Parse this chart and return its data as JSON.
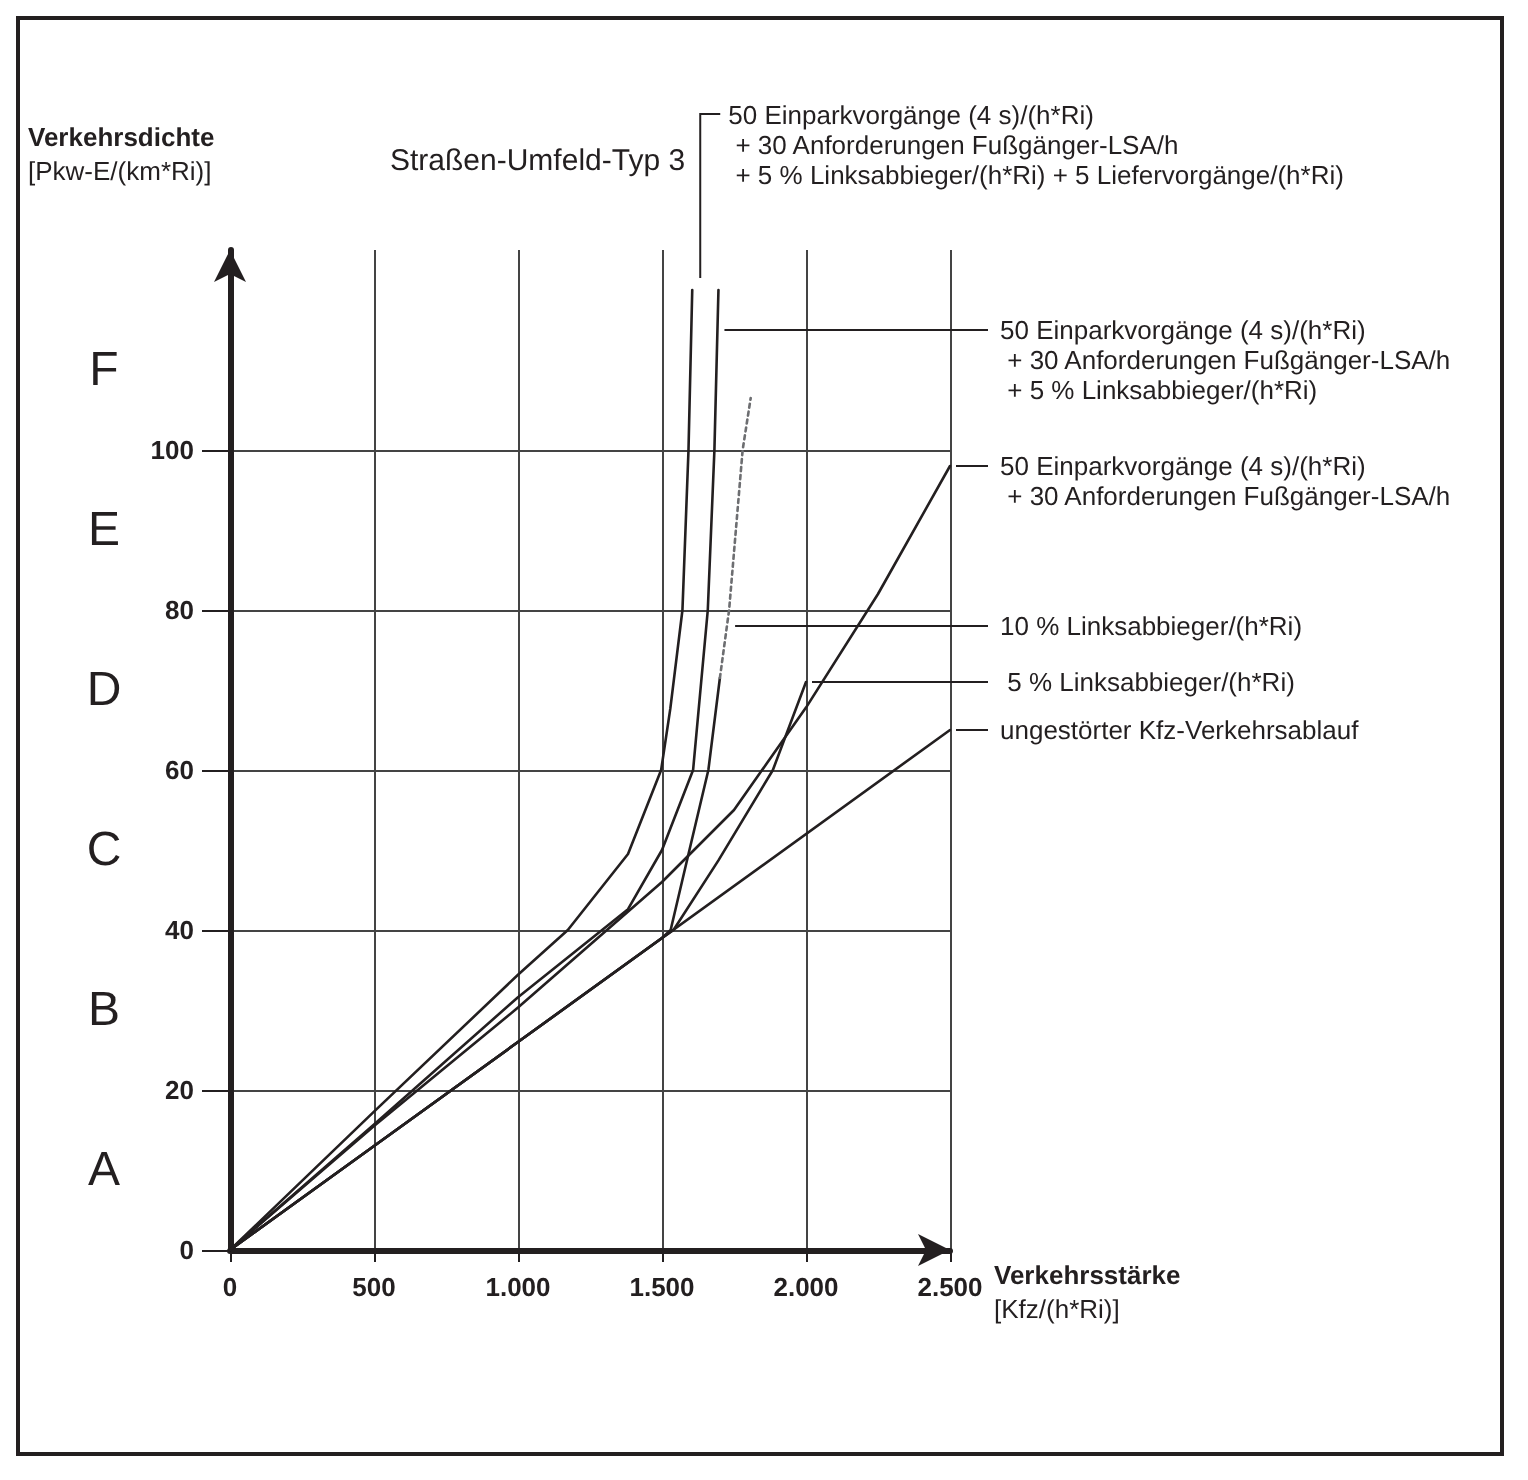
{
  "chart_data": {
    "type": "line",
    "title": "Straßen-Umfeld-Typ 3",
    "xlabel": "Verkehrsstärke\n[Kfz/(h*Ri)]",
    "ylabel": "Verkehrsdichte\n[Pkw-E/(km*Ri)]",
    "xlim": [
      0,
      2500
    ],
    "ylim": [
      0,
      125
    ],
    "xticks": [
      0,
      500,
      {
        "value": 1000,
        "label": "1.000"
      },
      {
        "value": 1500,
        "label": "1.500"
      },
      {
        "value": 2000,
        "label": "2.000"
      },
      {
        "value": 2500,
        "label": "2.500"
      }
    ],
    "yticks": [
      0,
      20,
      40,
      60,
      80,
      100
    ],
    "grid": true,
    "marker": "none",
    "line_style": "solid",
    "series": [
      {
        "color": "#231f20",
        "x": [
          0,
          2500
        ],
        "values": [
          0,
          65
        ]
      },
      {
        "color": "#231f20",
        "x": [
          0,
          500,
          1000,
          1500,
          1540,
          1696,
          1885,
          2000
        ],
        "values": [
          0,
          13,
          26,
          39,
          40,
          48.7,
          60,
          71
        ]
      },
      {
        "color": "#231f20",
        "x": [
          0,
          500,
          1000,
          1500,
          1530,
          1592,
          1661,
          1701
        ],
        "values": [
          0,
          13,
          26,
          39,
          40,
          49.5,
          60,
          71.5
        ]
      },
      {
        "color": "#6d6e71",
        "line_style": "dotted",
        "x": [
          1701,
          1733,
          1780,
          1808
        ],
        "values": [
          71.5,
          80,
          100,
          106.5
        ]
      },
      {
        "color": "#231f20",
        "x": [
          0,
          500,
          1000,
          1500,
          1750,
          2000,
          2250,
          2500
        ],
        "values": [
          0,
          15.5,
          30.3,
          46,
          55,
          67.8,
          82,
          98
        ]
      },
      {
        "color": "#231f20",
        "x": [
          0,
          500,
          1000,
          1382,
          1500,
          1608,
          1659,
          1682,
          1696
        ],
        "values": [
          0,
          15.7,
          31.6,
          42.6,
          50,
          60,
          80,
          100,
          120
        ]
      },
      {
        "color": "#231f20",
        "x": [
          0,
          500,
          1000,
          1173,
          1382,
          1497,
          1529,
          1571,
          1592,
          1605
        ],
        "values": [
          0,
          17.3,
          34.4,
          40,
          49.5,
          60,
          67.7,
          80,
          100,
          120
        ]
      }
    ],
    "annotations": [
      "50 Einparkvorgänge (4 s)/(h*Ri)\n + 30 Anforderungen Fußgänger-LSA/h\n + 5 % Linksabbieger/(h*Ri) + 5 Liefervorgänge/(h*Ri)",
      {
        "text": "50 Einparkvorgänge (4 s)/(h*Ri)\n + 30 Anforderungen Fußgänger-LSA/h\n + 5 % Linksabbieger/(h*Ri)",
        "x": 1696,
        "y": 115
      },
      {
        "text": "50 Einparkvorgänge (4 s)/(h*Ri)\n + 30 Anforderungen Fußgänger-LSA/h",
        "x": 2500,
        "y": 98
      },
      {
        "text": "10 % Linksabbieger/(h*Ri)",
        "x": 1733,
        "y": 78
      },
      {
        "text": " 5 % Linksabbieger/(h*Ri)",
        "x": 2000,
        "y": 71
      },
      {
        "text": "ungestörter Kfz-Verkehrsablauf",
        "x": 2500,
        "y": 65
      },
      "A",
      "B",
      "C",
      "D",
      "E",
      "F"
    ]
  }
}
